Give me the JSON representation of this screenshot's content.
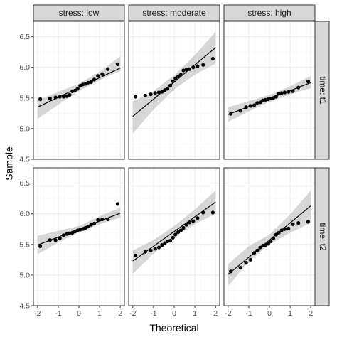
{
  "chart_data": {
    "type": "scatter",
    "subtype": "qq-plot-facet-grid",
    "xlabel": "Theoretical",
    "ylabel": "Sample",
    "xlim": [
      -2.2,
      2.2
    ],
    "ylim": [
      4.5,
      6.75
    ],
    "x_ticks": [
      -2,
      -1,
      0,
      1,
      2
    ],
    "y_ticks": [
      4.5,
      5.0,
      5.5,
      6.0,
      6.5
    ],
    "y_tick_labels": [
      "4.5",
      "5.0",
      "5.5",
      "6.0",
      "6.5"
    ],
    "x_tick_labels": [
      "-2",
      "-1",
      "0",
      "1",
      "2"
    ],
    "col_labels": [
      "stress: low",
      "stress: moderate",
      "stress: high"
    ],
    "row_labels": [
      "time: t1",
      "time: t2"
    ],
    "grid": true,
    "panels": [
      {
        "row": 0,
        "col": 0,
        "x": [
          -1.87,
          -1.4,
          -1.13,
          -0.92,
          -0.74,
          -0.59,
          -0.45,
          -0.32,
          -0.19,
          -0.06,
          0.06,
          0.19,
          0.32,
          0.45,
          0.59,
          0.74,
          0.92,
          1.13,
          1.4,
          1.87
        ],
        "y": [
          5.48,
          5.49,
          5.51,
          5.52,
          5.52,
          5.53,
          5.55,
          5.61,
          5.62,
          5.65,
          5.7,
          5.72,
          5.73,
          5.75,
          5.76,
          5.8,
          5.86,
          5.89,
          5.97,
          6.05
        ],
        "line": {
          "intercept": 5.67,
          "slope": 0.16
        },
        "band": {
          "x": [
            -2,
            -1,
            0,
            1,
            2
          ],
          "lower": [
            5.16,
            5.39,
            5.61,
            5.79,
            5.94
          ],
          "upper": [
            5.46,
            5.6,
            5.73,
            5.93,
            6.18
          ]
        }
      },
      {
        "row": 0,
        "col": 1,
        "x": [
          -1.87,
          -1.4,
          -1.13,
          -0.92,
          -0.74,
          -0.59,
          -0.45,
          -0.32,
          -0.19,
          -0.06,
          0.06,
          0.19,
          0.32,
          0.45,
          0.59,
          0.74,
          0.92,
          1.13,
          1.4,
          1.87
        ],
        "y": [
          5.52,
          5.54,
          5.56,
          5.58,
          5.59,
          5.6,
          5.63,
          5.65,
          5.7,
          5.77,
          5.82,
          5.85,
          5.88,
          5.95,
          5.96,
          5.97,
          6.0,
          6.02,
          6.04,
          6.14
        ],
        "line": {
          "intercept": 5.76,
          "slope": 0.28
        },
        "band": {
          "x": [
            -2,
            -1,
            0,
            1,
            2
          ],
          "lower": [
            4.92,
            5.31,
            5.64,
            5.88,
            6.06
          ],
          "upper": [
            5.44,
            5.61,
            5.87,
            6.2,
            6.58
          ]
        }
      },
      {
        "row": 0,
        "col": 2,
        "x": [
          -1.87,
          -1.4,
          -1.13,
          -0.92,
          -0.74,
          -0.59,
          -0.45,
          -0.32,
          -0.19,
          -0.06,
          0.06,
          0.19,
          0.32,
          0.45,
          0.59,
          0.74,
          0.92,
          1.13,
          1.4,
          1.87
        ],
        "y": [
          5.24,
          5.29,
          5.35,
          5.37,
          5.38,
          5.42,
          5.43,
          5.46,
          5.47,
          5.48,
          5.49,
          5.5,
          5.52,
          5.57,
          5.58,
          5.59,
          5.6,
          5.61,
          5.67,
          5.77
        ],
        "line": {
          "intercept": 5.49,
          "slope": 0.13
        },
        "band": {
          "x": [
            -2,
            -1,
            0,
            1,
            2
          ],
          "lower": [
            5.11,
            5.28,
            5.44,
            5.56,
            5.66
          ],
          "upper": [
            5.35,
            5.45,
            5.55,
            5.69,
            5.86
          ]
        }
      },
      {
        "row": 1,
        "col": 0,
        "x": [
          -1.87,
          -1.4,
          -1.13,
          -0.92,
          -0.74,
          -0.59,
          -0.45,
          -0.32,
          -0.19,
          -0.06,
          0.06,
          0.19,
          0.32,
          0.45,
          0.59,
          0.74,
          0.92,
          1.13,
          1.4,
          1.87
        ],
        "y": [
          5.47,
          5.57,
          5.57,
          5.6,
          5.65,
          5.67,
          5.68,
          5.69,
          5.71,
          5.73,
          5.74,
          5.75,
          5.77,
          5.79,
          5.82,
          5.84,
          5.9,
          5.91,
          5.91,
          6.16
        ],
        "line": {
          "intercept": 5.75,
          "slope": 0.13
        },
        "band": {
          "x": [
            -2,
            -1,
            0,
            1,
            2
          ],
          "lower": [
            5.34,
            5.53,
            5.7,
            5.83,
            5.94
          ],
          "upper": [
            5.64,
            5.72,
            5.8,
            5.96,
            6.1
          ]
        }
      },
      {
        "row": 1,
        "col": 1,
        "x": [
          -1.87,
          -1.4,
          -1.13,
          -0.92,
          -0.74,
          -0.59,
          -0.45,
          -0.32,
          -0.19,
          -0.06,
          0.06,
          0.19,
          0.32,
          0.45,
          0.59,
          0.74,
          0.92,
          1.13,
          1.4,
          1.87
        ],
        "y": [
          5.32,
          5.38,
          5.4,
          5.43,
          5.45,
          5.49,
          5.52,
          5.55,
          5.56,
          5.61,
          5.66,
          5.7,
          5.73,
          5.77,
          5.82,
          5.86,
          5.88,
          5.93,
          6.02,
          6.02
        ],
        "line": {
          "intercept": 5.71,
          "slope": 0.24
        },
        "band": {
          "x": [
            -2,
            -1,
            0,
            1,
            2
          ],
          "lower": [
            5.02,
            5.35,
            5.62,
            5.83,
            6.0
          ],
          "upper": [
            5.4,
            5.57,
            5.8,
            6.07,
            6.38
          ]
        }
      },
      {
        "row": 1,
        "col": 2,
        "x": [
          -1.87,
          -1.4,
          -1.13,
          -0.92,
          -0.74,
          -0.59,
          -0.45,
          -0.32,
          -0.19,
          -0.06,
          0.06,
          0.19,
          0.32,
          0.45,
          0.59,
          0.74,
          0.92,
          1.13,
          1.4,
          1.87
        ],
        "y": [
          5.06,
          5.12,
          5.2,
          5.25,
          5.36,
          5.4,
          5.45,
          5.48,
          5.49,
          5.51,
          5.55,
          5.6,
          5.66,
          5.69,
          5.73,
          5.75,
          5.76,
          5.83,
          5.85,
          5.87
        ],
        "line": {
          "intercept": 5.57,
          "slope": 0.28
        },
        "band": {
          "x": [
            -2,
            -1,
            0,
            1,
            2
          ],
          "lower": [
            4.82,
            5.22,
            5.5,
            5.69,
            5.85
          ],
          "upper": [
            5.18,
            5.47,
            5.66,
            5.99,
            6.38
          ]
        }
      }
    ]
  }
}
